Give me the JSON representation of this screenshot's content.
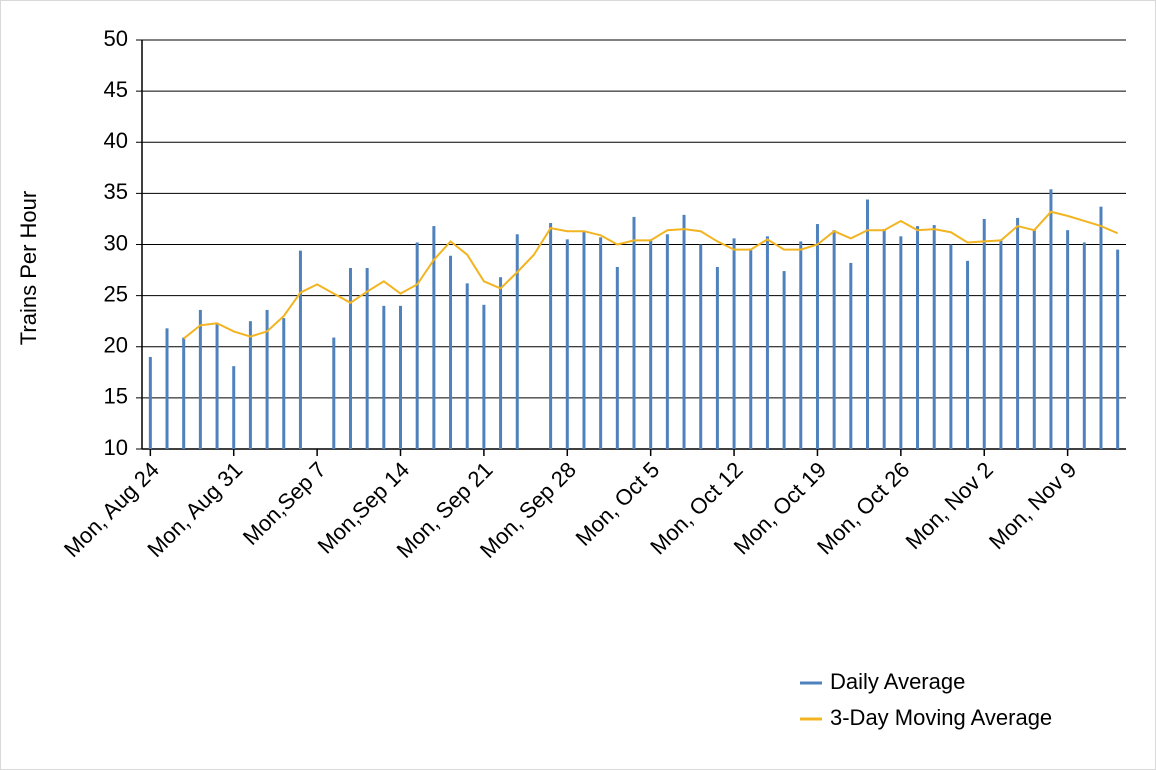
{
  "chart_data": {
    "type": "bar",
    "y_label": "Trains Per Hour",
    "categories": [
      "Mon, Aug 24",
      null,
      null,
      null,
      null,
      "Mon, Aug 31",
      null,
      null,
      null,
      null,
      "Mon,Sep 7",
      null,
      null,
      null,
      null,
      "Mon,Sep 14",
      null,
      null,
      null,
      null,
      "Mon, Sep 21",
      null,
      null,
      null,
      null,
      "Mon, Sep 28",
      null,
      null,
      null,
      null,
      "Mon, Oct 5",
      null,
      null,
      null,
      null,
      "Mon, Oct 12",
      null,
      null,
      null,
      null,
      "Mon, Oct 19",
      null,
      null,
      null,
      null,
      "Mon, Oct 26",
      null,
      null,
      null,
      null,
      "Mon, Nov 2",
      null,
      null,
      null,
      null,
      "Mon, Nov 9",
      null,
      null,
      null
    ],
    "series": [
      {
        "name": "Daily Average",
        "type": "bar",
        "color": "#4f81bd",
        "values": [
          19.0,
          21.8,
          20.9,
          23.6,
          22.2,
          18.1,
          22.5,
          23.6,
          22.8,
          29.4,
          null,
          20.9,
          27.7,
          27.7,
          24.0,
          24.0,
          30.2,
          31.8,
          28.9,
          26.2,
          24.1,
          26.8,
          31.0,
          null,
          32.1,
          30.5,
          31.3,
          30.7,
          27.8,
          32.7,
          30.5,
          31.0,
          32.9,
          30.0,
          27.8,
          30.6,
          29.6,
          30.8,
          27.4,
          30.3,
          32.0,
          31.4,
          28.2,
          34.4,
          31.5,
          30.8,
          31.8,
          31.9,
          30.0,
          28.4,
          32.5,
          30.5,
          32.6,
          31.5,
          35.4,
          31.4,
          30.2,
          33.7,
          29.5
        ]
      },
      {
        "name": "3-Day Moving Average",
        "type": "line",
        "color": "#f2b420",
        "values": [
          null,
          null,
          20.8,
          22.1,
          22.3,
          21.5,
          21.0,
          21.5,
          23.0,
          25.3,
          26.1,
          25.2,
          24.3,
          25.4,
          26.4,
          25.2,
          26.1,
          28.5,
          30.3,
          29.0,
          26.4,
          25.7,
          27.3,
          29.0,
          31.6,
          31.3,
          31.3,
          30.9,
          30.0,
          30.4,
          30.4,
          31.4,
          31.5,
          31.3,
          30.3,
          29.5,
          29.5,
          30.5,
          29.5,
          29.5,
          30.0,
          31.3,
          30.6,
          31.4,
          31.4,
          32.3,
          31.4,
          31.5,
          31.2,
          30.2,
          30.3,
          30.4,
          31.8,
          31.4,
          33.2,
          32.8,
          32.3,
          31.8,
          31.1
        ]
      }
    ],
    "ylim": [
      10,
      50
    ],
    "yticks": [
      10,
      15,
      20,
      25,
      30,
      35,
      40,
      45,
      50
    ],
    "grid": true,
    "legend": "bottom-right"
  }
}
